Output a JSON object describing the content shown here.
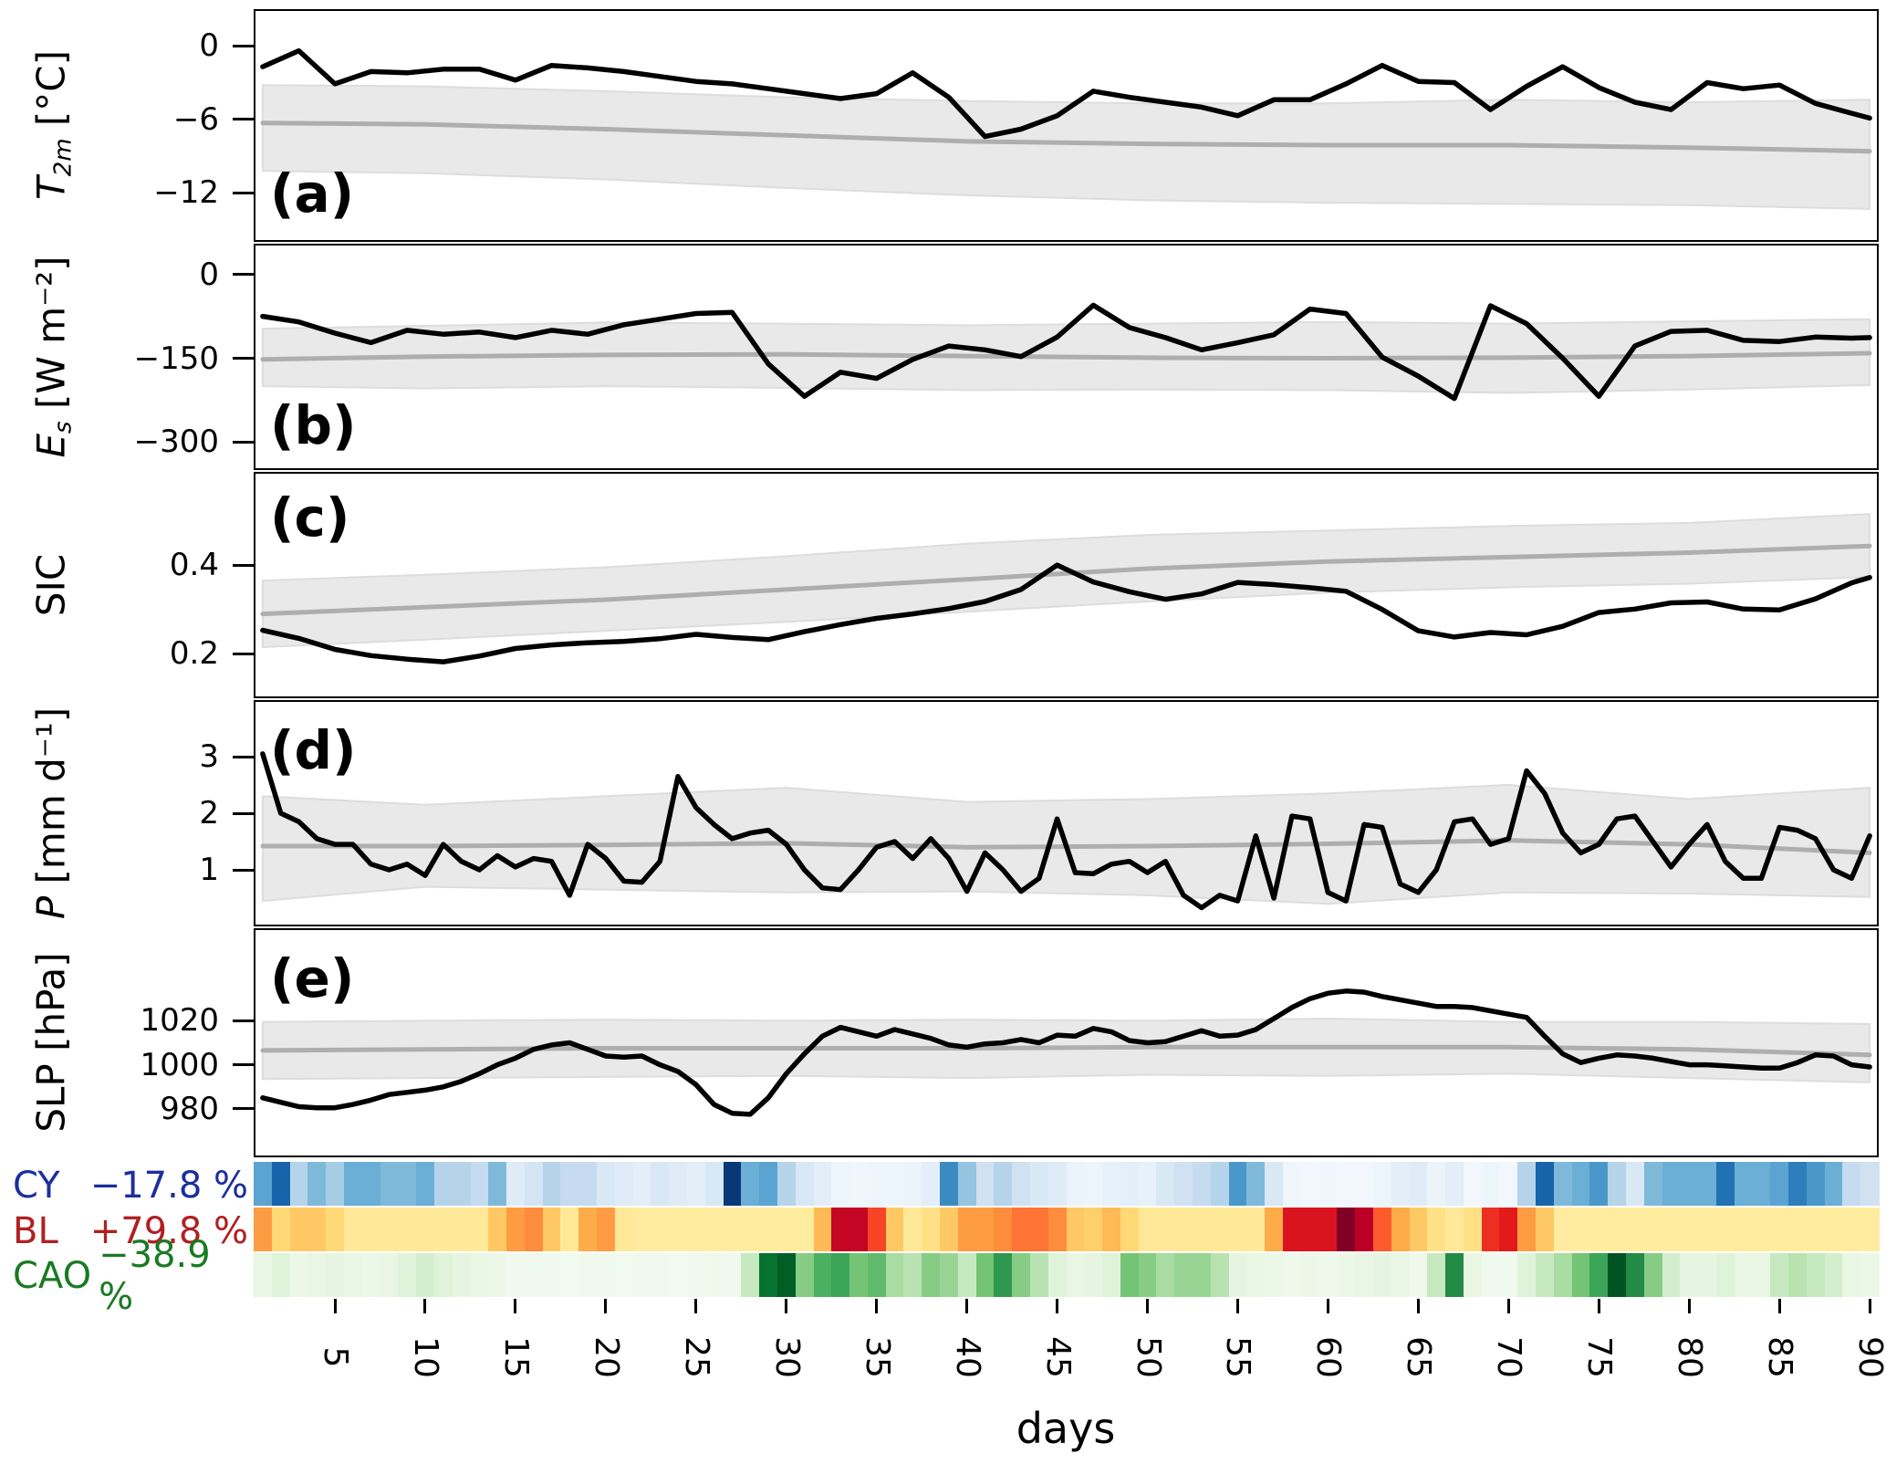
{
  "figure": {
    "xlabel": "days",
    "x_ticks": [
      5,
      10,
      15,
      20,
      25,
      30,
      35,
      40,
      45,
      50,
      55,
      60,
      65,
      70,
      75,
      80,
      85,
      90
    ],
    "x_range": [
      0.5,
      90.5
    ],
    "background": "#ffffff",
    "colors": {
      "actual_line": "#000000",
      "mean_line": "#aeaeae",
      "band_fill": "#e9e9e9",
      "band_edge": "#dddddd"
    }
  },
  "chart_data": [
    {
      "type": "line",
      "label": "(a)",
      "ylabel_var": "T",
      "ylabel_sub": "2m",
      "ylabel_rest": " [°C]",
      "yticks": [
        0,
        -6,
        -12
      ],
      "ylim": [
        -16,
        3
      ],
      "x": [
        1,
        3,
        5,
        7,
        9,
        11,
        13,
        15,
        17,
        19,
        21,
        23,
        25,
        27,
        29,
        31,
        33,
        35,
        37,
        39,
        41,
        43,
        45,
        47,
        49,
        51,
        53,
        55,
        57,
        59,
        61,
        63,
        65,
        67,
        69,
        71,
        73,
        75,
        77,
        79,
        81,
        83,
        85,
        87,
        89,
        90
      ],
      "actual": [
        -1.7,
        -0.4,
        -3.1,
        -2.1,
        -2.2,
        -1.9,
        -1.9,
        -2.8,
        -1.6,
        -1.8,
        -2.1,
        -2.5,
        -2.9,
        -3.1,
        -3.5,
        -3.9,
        -4.3,
        -3.9,
        -2.2,
        -4.2,
        -7.4,
        -6.8,
        -5.7,
        -3.7,
        -4.2,
        -4.6,
        -5.0,
        -5.7,
        -4.4,
        -4.4,
        -3.1,
        -1.6,
        -2.9,
        -3.0,
        -5.2,
        -3.3,
        -1.7,
        -3.4,
        -4.6,
        -5.2,
        -3.0,
        -3.5,
        -3.2,
        -4.7,
        -5.5,
        -5.9
      ],
      "mean_x": [
        1,
        10,
        20,
        30,
        40,
        50,
        60,
        70,
        80,
        90
      ],
      "mean": [
        -6.3,
        -6.4,
        -6.8,
        -7.3,
        -7.8,
        -8.0,
        -8.1,
        -8.1,
        -8.3,
        -8.6
      ],
      "band_upper": [
        -3.2,
        -3.3,
        -3.7,
        -4.2,
        -4.5,
        -4.7,
        -4.7,
        -4.4,
        -4.6,
        -4.4
      ],
      "band_lower": [
        -10.2,
        -10.4,
        -10.9,
        -11.6,
        -12.2,
        -12.6,
        -12.8,
        -12.9,
        -13.0,
        -13.3
      ]
    },
    {
      "type": "line",
      "label": "(b)",
      "ylabel_var": "E",
      "ylabel_sub": "s",
      "ylabel_rest": " [W m⁻²]",
      "yticks": [
        0,
        -150,
        -300
      ],
      "ylim": [
        -350,
        55
      ],
      "x": [
        1,
        3,
        5,
        7,
        9,
        11,
        13,
        15,
        17,
        19,
        21,
        23,
        25,
        27,
        29,
        31,
        33,
        35,
        37,
        39,
        41,
        43,
        45,
        47,
        49,
        51,
        53,
        55,
        57,
        59,
        61,
        63,
        65,
        67,
        69,
        71,
        73,
        75,
        77,
        79,
        81,
        83,
        85,
        87,
        89,
        90
      ],
      "actual": [
        -75,
        -85,
        -105,
        -122,
        -100,
        -107,
        -103,
        -113,
        -100,
        -107,
        -90,
        -80,
        -70,
        -68,
        -160,
        -218,
        -175,
        -186,
        -152,
        -128,
        -135,
        -147,
        -112,
        -55,
        -95,
        -113,
        -135,
        -122,
        -108,
        -62,
        -70,
        -148,
        -182,
        -222,
        -56,
        -88,
        -150,
        -218,
        -128,
        -102,
        -100,
        -118,
        -120,
        -112,
        -114,
        -113
      ],
      "mean_x": [
        1,
        10,
        20,
        30,
        40,
        50,
        60,
        70,
        80,
        90
      ],
      "mean": [
        -152,
        -147,
        -144,
        -143,
        -146,
        -149,
        -150,
        -149,
        -146,
        -141
      ],
      "band_upper": [
        -97,
        -92,
        -86,
        -88,
        -91,
        -88,
        -85,
        -88,
        -84,
        -80
      ],
      "band_lower": [
        -200,
        -204,
        -200,
        -203,
        -207,
        -206,
        -207,
        -212,
        -206,
        -198
      ]
    },
    {
      "type": "line",
      "label": "(c)",
      "ylabel_var": "",
      "ylabel_sub": "",
      "ylabel_rest": "SIC",
      "yticks": [
        0.4,
        0.2
      ],
      "ylim": [
        0.1,
        0.61
      ],
      "x": [
        1,
        3,
        5,
        7,
        9,
        11,
        13,
        15,
        17,
        19,
        21,
        23,
        25,
        27,
        29,
        31,
        33,
        35,
        37,
        39,
        41,
        43,
        45,
        47,
        49,
        51,
        53,
        55,
        57,
        59,
        61,
        63,
        65,
        67,
        69,
        71,
        73,
        75,
        77,
        79,
        81,
        83,
        85,
        87,
        89,
        90
      ],
      "actual": [
        0.253,
        0.235,
        0.21,
        0.196,
        0.188,
        0.182,
        0.195,
        0.212,
        0.22,
        0.225,
        0.228,
        0.234,
        0.244,
        0.237,
        0.232,
        0.25,
        0.266,
        0.28,
        0.29,
        0.302,
        0.318,
        0.345,
        0.4,
        0.362,
        0.34,
        0.323,
        0.335,
        0.361,
        0.356,
        0.349,
        0.341,
        0.3,
        0.252,
        0.238,
        0.248,
        0.243,
        0.262,
        0.293,
        0.301,
        0.315,
        0.317,
        0.301,
        0.299,
        0.324,
        0.36,
        0.372
      ],
      "mean_x": [
        1,
        10,
        20,
        30,
        40,
        50,
        60,
        70,
        80,
        90
      ],
      "mean": [
        0.29,
        0.305,
        0.322,
        0.345,
        0.368,
        0.392,
        0.408,
        0.418,
        0.428,
        0.443
      ],
      "band_upper": [
        0.365,
        0.378,
        0.395,
        0.42,
        0.448,
        0.468,
        0.478,
        0.488,
        0.495,
        0.515
      ],
      "band_lower": [
        0.215,
        0.232,
        0.252,
        0.272,
        0.295,
        0.318,
        0.338,
        0.35,
        0.358,
        0.373
      ]
    },
    {
      "type": "line",
      "label": "(d)",
      "ylabel_var": "P",
      "ylabel_sub": "",
      "ylabel_rest": " [mm d⁻¹]",
      "yticks": [
        3,
        2,
        1
      ],
      "ylim": [
        0,
        4
      ],
      "x": [
        1,
        2,
        3,
        4,
        5,
        6,
        7,
        8,
        9,
        10,
        11,
        12,
        13,
        14,
        15,
        16,
        17,
        18,
        19,
        20,
        21,
        22,
        23,
        24,
        25,
        26,
        27,
        28,
        29,
        30,
        31,
        32,
        33,
        34,
        35,
        36,
        37,
        38,
        39,
        40,
        41,
        42,
        43,
        44,
        45,
        46,
        47,
        48,
        49,
        50,
        51,
        52,
        53,
        54,
        55,
        56,
        57,
        58,
        59,
        60,
        61,
        62,
        63,
        64,
        65,
        66,
        67,
        68,
        69,
        70,
        71,
        72,
        73,
        74,
        75,
        76,
        77,
        78,
        79,
        80,
        81,
        82,
        83,
        84,
        85,
        86,
        87,
        88,
        89,
        90
      ],
      "actual": [
        3.05,
        2.0,
        1.85,
        1.55,
        1.45,
        1.45,
        1.1,
        1.0,
        1.1,
        0.9,
        1.45,
        1.15,
        1.0,
        1.25,
        1.05,
        1.2,
        1.15,
        0.55,
        1.45,
        1.2,
        0.8,
        0.78,
        1.15,
        2.65,
        2.1,
        1.8,
        1.55,
        1.65,
        1.7,
        1.45,
        1.0,
        0.68,
        0.65,
        1.0,
        1.4,
        1.5,
        1.2,
        1.55,
        1.2,
        0.62,
        1.3,
        1.0,
        0.62,
        0.85,
        1.9,
        0.95,
        0.93,
        1.1,
        1.15,
        0.95,
        1.15,
        0.55,
        0.33,
        0.55,
        0.45,
        1.6,
        0.5,
        1.95,
        1.9,
        0.6,
        0.45,
        1.8,
        1.75,
        0.75,
        0.6,
        1.0,
        1.85,
        1.9,
        1.45,
        1.55,
        2.75,
        2.35,
        1.65,
        1.3,
        1.45,
        1.9,
        1.95,
        1.5,
        1.05,
        1.45,
        1.8,
        1.15,
        0.85,
        0.85,
        1.75,
        1.7,
        1.55,
        1.0,
        0.85,
        1.6
      ],
      "mean_x": [
        1,
        10,
        20,
        30,
        40,
        50,
        60,
        70,
        80,
        90
      ],
      "mean": [
        1.42,
        1.42,
        1.44,
        1.47,
        1.4,
        1.42,
        1.46,
        1.52,
        1.45,
        1.3
      ],
      "band_upper": [
        2.3,
        2.15,
        2.3,
        2.45,
        2.2,
        2.25,
        2.35,
        2.5,
        2.25,
        2.45
      ],
      "band_lower": [
        0.45,
        0.7,
        0.65,
        0.6,
        0.62,
        0.55,
        0.4,
        0.6,
        0.58,
        0.52
      ]
    },
    {
      "type": "line",
      "label": "(e)",
      "ylabel_var": "",
      "ylabel_sub": "",
      "ylabel_rest": "SLP [hPa]",
      "yticks": [
        1020,
        1000,
        980
      ],
      "ylim": [
        958,
        1062
      ],
      "x": [
        1,
        2,
        3,
        4,
        5,
        6,
        7,
        8,
        9,
        10,
        11,
        12,
        13,
        14,
        15,
        16,
        17,
        18,
        19,
        20,
        21,
        22,
        23,
        24,
        25,
        26,
        27,
        28,
        29,
        30,
        31,
        32,
        33,
        34,
        35,
        36,
        37,
        38,
        39,
        40,
        41,
        42,
        43,
        44,
        45,
        46,
        47,
        48,
        49,
        50,
        51,
        52,
        53,
        54,
        55,
        56,
        57,
        58,
        59,
        60,
        61,
        62,
        63,
        64,
        65,
        66,
        67,
        68,
        69,
        70,
        71,
        72,
        73,
        74,
        75,
        76,
        77,
        78,
        79,
        80,
        81,
        82,
        83,
        84,
        85,
        86,
        87,
        88,
        89,
        90
      ],
      "actual": [
        985,
        983,
        981,
        980.5,
        980.5,
        982,
        984,
        986.5,
        987.5,
        988.5,
        990,
        992.5,
        996,
        1000,
        1003,
        1007,
        1009,
        1010,
        1007,
        1004,
        1003.5,
        1004,
        1000,
        997,
        991,
        982,
        978,
        977.5,
        985,
        996,
        1005,
        1013,
        1017,
        1015,
        1013,
        1016,
        1014,
        1012,
        1009,
        1008,
        1009.5,
        1010,
        1011.5,
        1010,
        1013.5,
        1013,
        1016.5,
        1015,
        1011,
        1010,
        1010.5,
        1013,
        1015.5,
        1013,
        1013.5,
        1016,
        1021,
        1026,
        1030,
        1032.5,
        1033.5,
        1033,
        1031,
        1029.5,
        1028,
        1026.5,
        1026.5,
        1026,
        1024.5,
        1023,
        1021.5,
        1013,
        1005,
        1001,
        1003,
        1004.5,
        1004,
        1003,
        1001.5,
        1000,
        1000,
        999.5,
        999,
        998.5,
        998.5,
        1001,
        1004.5,
        1004,
        1000,
        999
      ],
      "mean_x": [
        1,
        10,
        20,
        30,
        40,
        50,
        60,
        70,
        80,
        90
      ],
      "mean": [
        1006.5,
        1007,
        1007.5,
        1007.5,
        1007.5,
        1008,
        1008,
        1008,
        1007,
        1004.5
      ],
      "band_upper": [
        1019.5,
        1020,
        1020.5,
        1020,
        1020.5,
        1020,
        1021,
        1019.5,
        1019.5,
        1018.5
      ],
      "band_lower": [
        993.5,
        994,
        994.5,
        995,
        994,
        995.5,
        995,
        996,
        994,
        992
      ]
    },
    {
      "type": "heatmap",
      "days": 90,
      "rows": [
        {
          "label": "CY",
          "value": "−17.8 %",
          "colormap": "Blues",
          "label_color": "#1c2f9c",
          "values": [
            0.55,
            0.8,
            0.3,
            0.45,
            0.35,
            0.5,
            0.5,
            0.45,
            0.45,
            0.5,
            0.3,
            0.3,
            0.25,
            0.45,
            0.12,
            0.18,
            0.3,
            0.25,
            0.25,
            0.15,
            0.12,
            0.1,
            0.15,
            0.12,
            0.1,
            0.15,
            0.97,
            0.5,
            0.55,
            0.3,
            0.15,
            0.1,
            0.05,
            0.04,
            0.05,
            0.05,
            0.06,
            0.1,
            0.65,
            0.4,
            0.2,
            0.3,
            0.2,
            0.15,
            0.12,
            0.06,
            0.05,
            0.08,
            0.1,
            0.08,
            0.15,
            0.2,
            0.25,
            0.3,
            0.6,
            0.45,
            0.15,
            0.04,
            0.03,
            0.04,
            0.03,
            0.03,
            0.05,
            0.1,
            0.12,
            0.06,
            0.1,
            0.03,
            0.05,
            0.03,
            0.3,
            0.8,
            0.45,
            0.5,
            0.6,
            0.3,
            0.15,
            0.45,
            0.5,
            0.5,
            0.5,
            0.75,
            0.5,
            0.5,
            0.55,
            0.7,
            0.6,
            0.5,
            0.25,
            0.2
          ]
        },
        {
          "label": "BL",
          "value": "+79.8 %",
          "colormap": "YlOrRd",
          "label_color": "#b02020",
          "values": [
            0.45,
            0.25,
            0.3,
            0.3,
            0.25,
            0.15,
            0.15,
            0.15,
            0.15,
            0.15,
            0.15,
            0.15,
            0.15,
            0.3,
            0.45,
            0.5,
            0.3,
            0.15,
            0.4,
            0.45,
            0.15,
            0.13,
            0.13,
            0.13,
            0.13,
            0.13,
            0.13,
            0.13,
            0.13,
            0.13,
            0.13,
            0.35,
            0.85,
            0.85,
            0.65,
            0.3,
            0.15,
            0.2,
            0.3,
            0.45,
            0.45,
            0.5,
            0.55,
            0.55,
            0.5,
            0.3,
            0.28,
            0.35,
            0.25,
            0.15,
            0.15,
            0.15,
            0.15,
            0.15,
            0.15,
            0.15,
            0.4,
            0.78,
            0.78,
            0.78,
            1.0,
            0.88,
            0.6,
            0.4,
            0.3,
            0.2,
            0.15,
            0.2,
            0.7,
            0.75,
            0.45,
            0.3,
            0.13,
            0.13,
            0.13,
            0.13,
            0.13,
            0.13,
            0.13,
            0.13,
            0.13,
            0.13,
            0.13,
            0.13,
            0.13,
            0.13,
            0.13,
            0.13,
            0.13,
            0.13
          ]
        },
        {
          "label": "CAO",
          "value": "−38.9 %",
          "colormap": "Greens",
          "label_color": "#1a7a22",
          "values": [
            0.1,
            0.15,
            0.08,
            0.1,
            0.12,
            0.1,
            0.08,
            0.1,
            0.15,
            0.2,
            0.15,
            0.12,
            0.1,
            0.08,
            0.05,
            0.05,
            0.05,
            0.04,
            0.05,
            0.05,
            0.04,
            0.05,
            0.05,
            0.04,
            0.05,
            0.06,
            0.05,
            0.25,
            0.85,
            0.92,
            0.45,
            0.6,
            0.65,
            0.5,
            0.55,
            0.35,
            0.3,
            0.45,
            0.4,
            0.25,
            0.5,
            0.7,
            0.45,
            0.3,
            0.15,
            0.1,
            0.12,
            0.15,
            0.5,
            0.45,
            0.35,
            0.4,
            0.4,
            0.3,
            0.12,
            0.1,
            0.08,
            0.06,
            0.08,
            0.06,
            0.08,
            0.1,
            0.12,
            0.1,
            0.06,
            0.25,
            0.75,
            0.1,
            0.05,
            0.05,
            0.15,
            0.25,
            0.35,
            0.5,
            0.65,
            0.95,
            0.75,
            0.45,
            0.2,
            0.12,
            0.12,
            0.15,
            0.1,
            0.1,
            0.25,
            0.3,
            0.25,
            0.2,
            0.1,
            0.08
          ]
        }
      ]
    }
  ]
}
